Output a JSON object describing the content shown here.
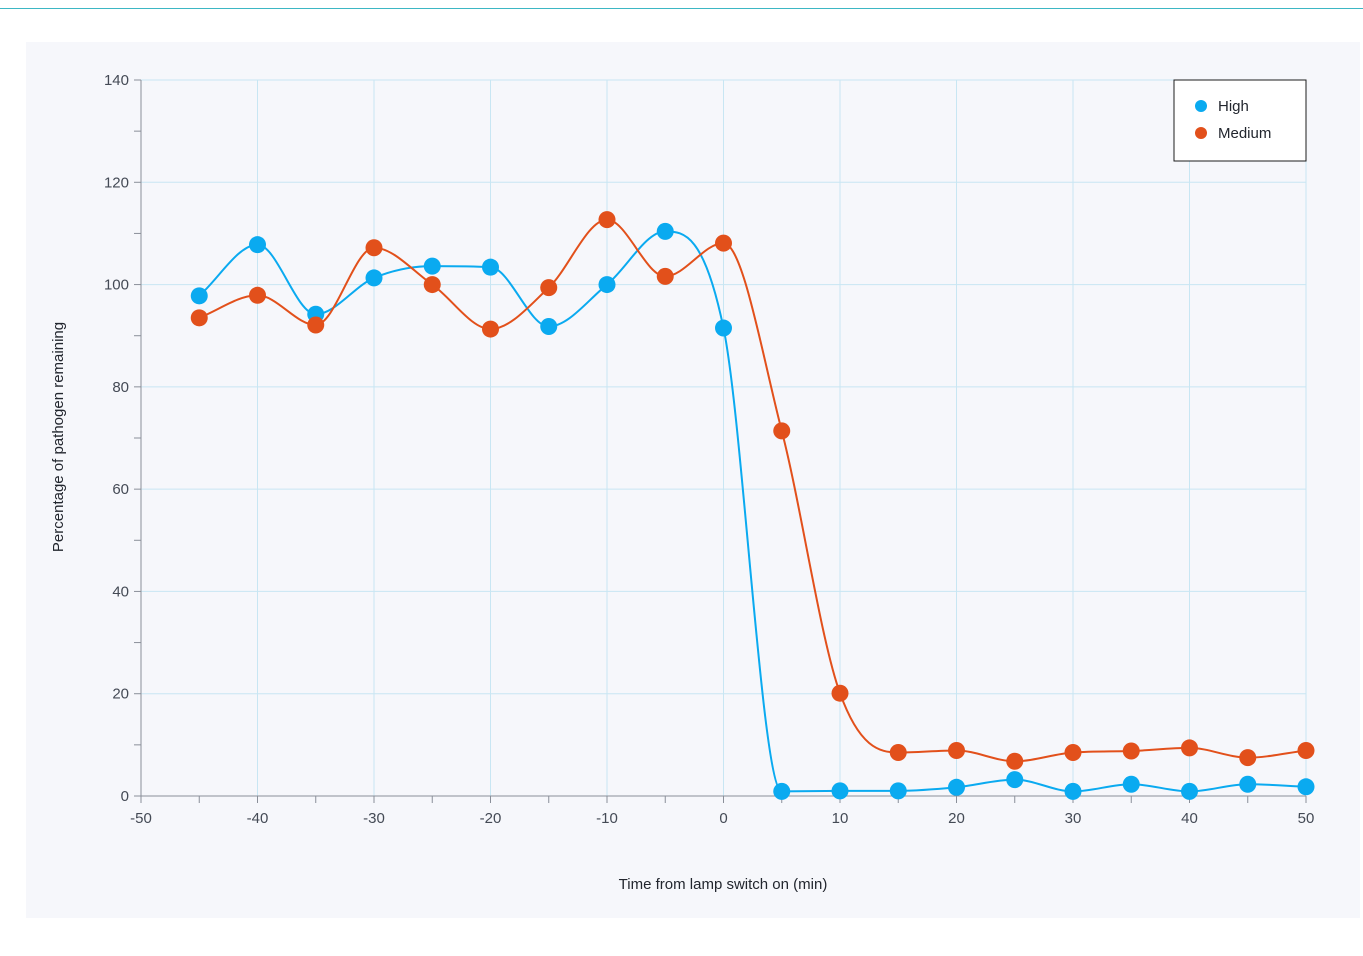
{
  "colors": {
    "high": "#0aaaf0",
    "medium": "#e2501b",
    "grid": "#c8e6f3",
    "axis": "#8a8f99"
  },
  "chart_data": {
    "type": "line",
    "title": "",
    "xlabel": "Time from lamp switch on (min)",
    "ylabel": "Percentage of pathogen remaining",
    "xlim": [
      -50,
      50
    ],
    "ylim": [
      0,
      140
    ],
    "x_ticks": [
      -50,
      -40,
      -30,
      -20,
      -10,
      0,
      10,
      20,
      30,
      40,
      50
    ],
    "y_ticks": [
      0,
      20,
      40,
      60,
      80,
      100,
      120,
      140
    ],
    "grid": true,
    "legend_position": "top-right",
    "x": [
      -45,
      -40,
      -35,
      -30,
      -25,
      -20,
      -15,
      -10,
      -5,
      0,
      5,
      10,
      15,
      20,
      25,
      30,
      35,
      40,
      45,
      50
    ],
    "series": [
      {
        "name": "High",
        "color": "#0aaaf0",
        "values": [
          97.8,
          107.8,
          94.2,
          101.3,
          103.6,
          103.4,
          91.8,
          100.0,
          110.4,
          91.5,
          0.9,
          1.0,
          1.0,
          1.7,
          3.2,
          0.9,
          2.3,
          0.9,
          2.3,
          1.8
        ]
      },
      {
        "name": "Medium",
        "color": "#e2501b",
        "values": [
          93.5,
          97.9,
          92.1,
          107.2,
          100.0,
          91.3,
          99.4,
          112.7,
          101.6,
          108.1,
          71.4,
          20.1,
          8.5,
          8.9,
          6.8,
          8.5,
          8.8,
          9.4,
          7.5,
          8.9
        ]
      }
    ]
  }
}
